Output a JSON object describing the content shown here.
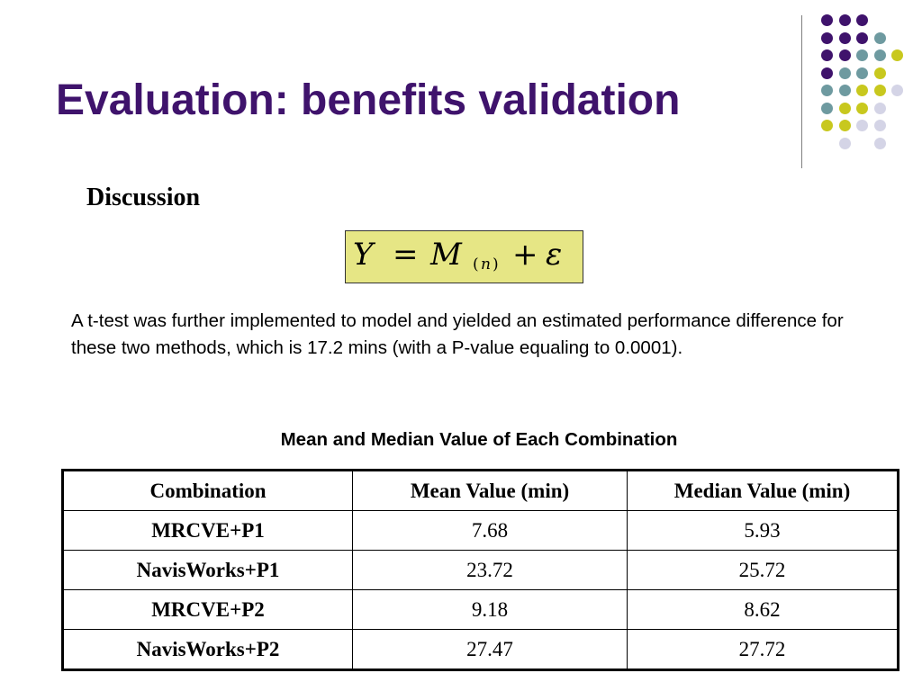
{
  "slide": {
    "title": "Evaluation: benefits validation",
    "subheading": "Discussion",
    "formula": {
      "lhs": "Y",
      "equals": "=",
      "term": "M",
      "subscript_open": "(",
      "subscript_var": "n",
      "subscript_close": ")",
      "plus": "+",
      "error": "ε"
    },
    "paragraph": "A t-test was further implemented to model and yielded an estimated performance difference for these two methods, which is 17.2 mins (with a P-value equaling to 0.0001).",
    "table_caption": "Mean and Median Value of Each Combination"
  },
  "table": {
    "headers": [
      "Combination",
      "Mean Value (min)",
      "Median Value (min)"
    ],
    "rows": [
      [
        "MRCVE+P1",
        "7.68",
        "5.93"
      ],
      [
        "NavisWorks+P1",
        "23.72",
        "25.72"
      ],
      [
        "MRCVE+P2",
        "9.18",
        "8.62"
      ],
      [
        "NavisWorks+P2",
        "27.47",
        "27.72"
      ]
    ]
  },
  "colors": {
    "title": "#3f136c",
    "dot_purple": "#3f136c",
    "dot_teal": "#6e9aa0",
    "dot_yellow": "#c8c81e",
    "dot_lavender": "#d4d4e6",
    "formula_background": "#e6e685"
  },
  "decor": {
    "dot_grid_icon": "dot-grid-logo",
    "dot_rows": [
      [
        "purple",
        "purple",
        "purple",
        "",
        "",
        ""
      ],
      [
        "purple",
        "purple",
        "purple",
        "teal",
        "",
        ""
      ],
      [
        "purple",
        "purple",
        "teal",
        "teal",
        "yellow",
        ""
      ],
      [
        "purple",
        "teal",
        "teal",
        "yellow",
        "",
        ""
      ],
      [
        "teal",
        "teal",
        "yellow",
        "yellow",
        "lavender",
        ""
      ],
      [
        "teal",
        "yellow",
        "yellow",
        "lavender",
        "",
        ""
      ],
      [
        "yellow",
        "yellow",
        "lavender",
        "lavender",
        "",
        ""
      ],
      [
        "",
        "lavender",
        "",
        "lavender",
        "",
        ""
      ]
    ]
  }
}
